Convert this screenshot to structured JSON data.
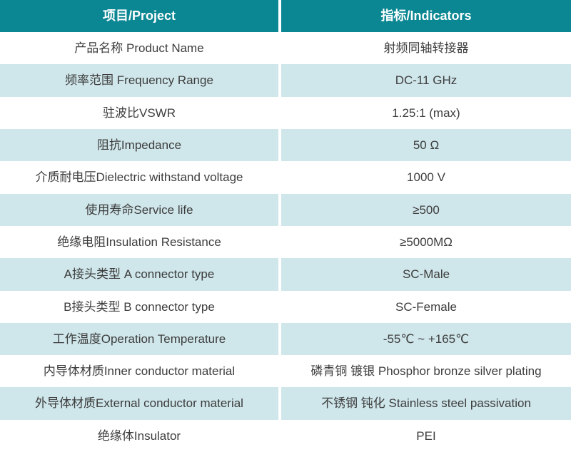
{
  "colors": {
    "header_bg": "#0b8793",
    "alt_row_bg": "#cfe6ea",
    "text": "#3d3d3d",
    "header_text": "#ffffff"
  },
  "table": {
    "headers": {
      "project": "项目/Project",
      "indicators": "指标/Indicators"
    },
    "rows": [
      {
        "project": "产品名称 Product Name",
        "indicator": "射频同轴转接器"
      },
      {
        "project": "频率范围 Frequency Range",
        "indicator": "DC-11 GHz"
      },
      {
        "project": "驻波比VSWR",
        "indicator": "1.25:1 (max)"
      },
      {
        "project": "阻抗Impedance",
        "indicator": "50 Ω"
      },
      {
        "project": "介质耐电压Dielectric withstand voltage",
        "indicator": "1000 V"
      },
      {
        "project": "使用寿命Service life",
        "indicator": "≥500"
      },
      {
        "project": "绝缘电阻Insulation Resistance",
        "indicator": "≥5000MΩ"
      },
      {
        "project": "A接头类型 A connector type",
        "indicator": "SC-Male"
      },
      {
        "project": "B接头类型 B connector type",
        "indicator": "SC-Female"
      },
      {
        "project": "工作温度Operation Temperature",
        "indicator": "-55℃ ~ +165℃"
      },
      {
        "project": "内导体材质Inner conductor material",
        "indicator": "磷青铜 镀银 Phosphor bronze silver plating"
      },
      {
        "project": "外导体材质External conductor material",
        "indicator": "不锈钢 钝化 Stainless steel passivation"
      },
      {
        "project": "绝缘体Insulator",
        "indicator": "PEI"
      }
    ]
  }
}
